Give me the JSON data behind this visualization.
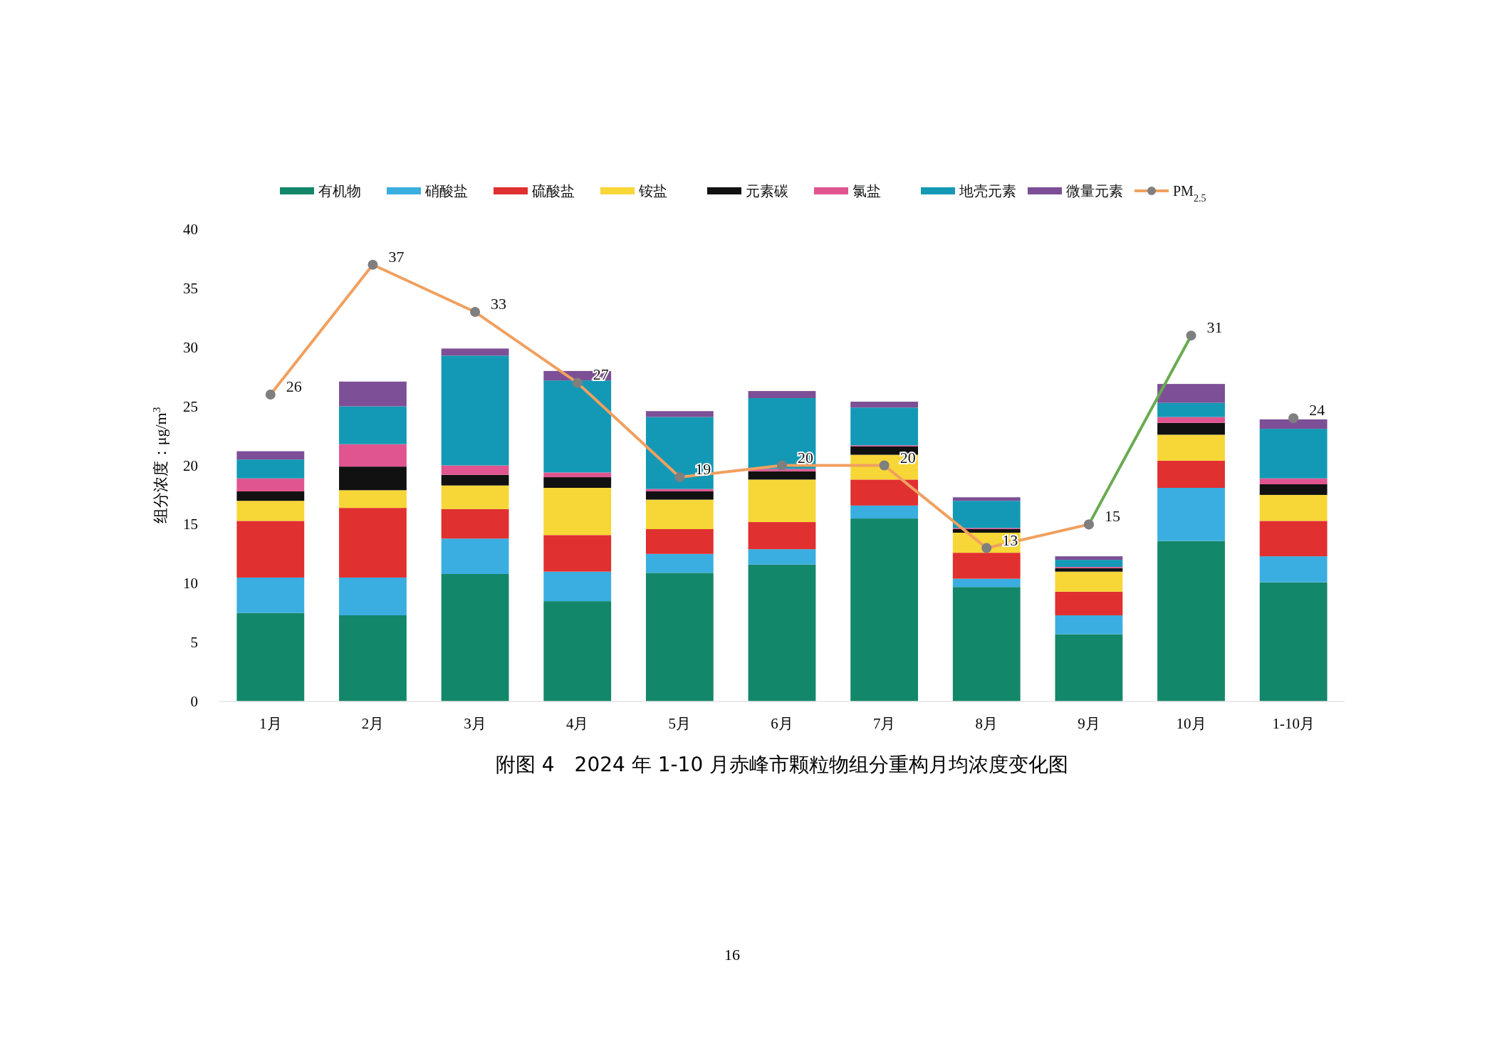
{
  "chart_data": {
    "type": "bar",
    "stacked": true,
    "title": "附图 4　2024 年 1-10 月赤峰市颗粒物组分重构月均浓度变化图",
    "ylabel": "组分浓度：μg/m$^{3}$",
    "categories": [
      "1月",
      "2月",
      "3月",
      "4月",
      "5月",
      "6月",
      "7月",
      "8月",
      "9月",
      "10月",
      "1-10月"
    ],
    "ylim": [
      0,
      40
    ],
    "yticks": [
      0,
      5,
      10,
      15,
      20,
      25,
      30,
      35,
      40
    ],
    "legend": "top",
    "grid": false,
    "marker": "circle",
    "series": [
      {
        "name": "有机物",
        "color": "#13876a",
        "values": [
          7.5,
          7.3,
          10.8,
          8.5,
          10.9,
          11.6,
          15.5,
          9.7,
          5.7,
          13.6,
          10.1
        ]
      },
      {
        "name": "硝酸盐",
        "color": "#3aaee0",
        "values": [
          3.0,
          3.2,
          3.0,
          2.5,
          1.6,
          1.3,
          1.1,
          0.7,
          1.6,
          4.5,
          2.2
        ]
      },
      {
        "name": "硫酸盐",
        "color": "#e03030",
        "values": [
          4.8,
          5.9,
          2.5,
          3.1,
          2.1,
          2.3,
          2.2,
          2.2,
          2.0,
          2.3,
          3.0
        ]
      },
      {
        "name": "铵盐",
        "color": "#f7d637",
        "values": [
          1.7,
          1.5,
          2.0,
          4.0,
          2.5,
          3.6,
          2.1,
          1.7,
          1.7,
          2.2,
          2.2
        ]
      },
      {
        "name": "元素碳",
        "color": "#111111",
        "values": [
          0.8,
          2.0,
          0.9,
          0.9,
          0.7,
          0.7,
          0.7,
          0.3,
          0.3,
          1.0,
          0.9
        ]
      },
      {
        "name": "氯盐",
        "color": "#e0558f",
        "values": [
          1.1,
          1.9,
          0.8,
          0.4,
          0.2,
          0.2,
          0.1,
          0.1,
          0.1,
          0.5,
          0.5
        ]
      },
      {
        "name": "地壳元素",
        "color": "#1399b5",
        "values": [
          1.6,
          3.2,
          9.3,
          7.8,
          6.1,
          6.0,
          3.2,
          2.3,
          0.6,
          1.2,
          4.2
        ]
      },
      {
        "name": "微量元素",
        "color": "#7d4f96",
        "values": [
          0.7,
          2.1,
          0.6,
          0.8,
          0.5,
          0.6,
          0.5,
          0.3,
          0.3,
          1.6,
          0.8
        ]
      },
      {
        "name": "PM$_{2.5}$",
        "type": "line",
        "color": "#f0a060",
        "values": [
          26,
          37,
          33,
          27,
          19,
          20,
          20,
          13,
          15,
          null,
          null
        ],
        "value_labels": [
          "26",
          "37",
          "33",
          "27",
          "19",
          "20",
          "20",
          "13",
          "15",
          null,
          null
        ]
      },
      {
        "type": "line",
        "color": "#6aaa50",
        "values": [
          null,
          null,
          null,
          null,
          null,
          null,
          null,
          null,
          15,
          31,
          null
        ],
        "value_labels": [
          null,
          null,
          null,
          null,
          null,
          null,
          null,
          null,
          null,
          "31",
          null
        ]
      },
      {
        "type": "line",
        "color": "#808080",
        "values": [
          null,
          null,
          null,
          null,
          null,
          null,
          null,
          null,
          null,
          null,
          24
        ],
        "value_labels": [
          null,
          null,
          null,
          null,
          null,
          null,
          null,
          null,
          null,
          null,
          "24"
        ]
      }
    ],
    "annotations": [
      "16"
    ]
  }
}
